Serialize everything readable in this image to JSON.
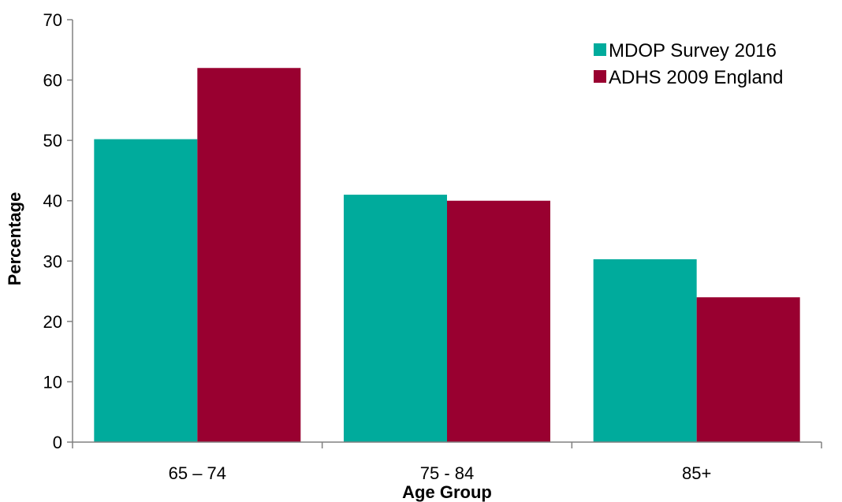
{
  "chart_data": {
    "type": "bar",
    "title": "",
    "xlabel": "Age Group",
    "ylabel": "Percentage",
    "categories": [
      "65 – 74",
      "75 - 84",
      "85+"
    ],
    "series": [
      {
        "name": "MDOP Survey 2016",
        "color": "#00AB9C",
        "values": [
          50.2,
          41.0,
          30.3
        ]
      },
      {
        "name": "ADHS 2009 England",
        "color": "#990030",
        "values": [
          62.0,
          40.0,
          24.0
        ]
      }
    ],
    "ylim": [
      0,
      70
    ],
    "yticks": [
      "0",
      "10",
      "20",
      "30",
      "40",
      "50",
      "60",
      "70"
    ],
    "grid": false,
    "legend_position": "top-right"
  }
}
